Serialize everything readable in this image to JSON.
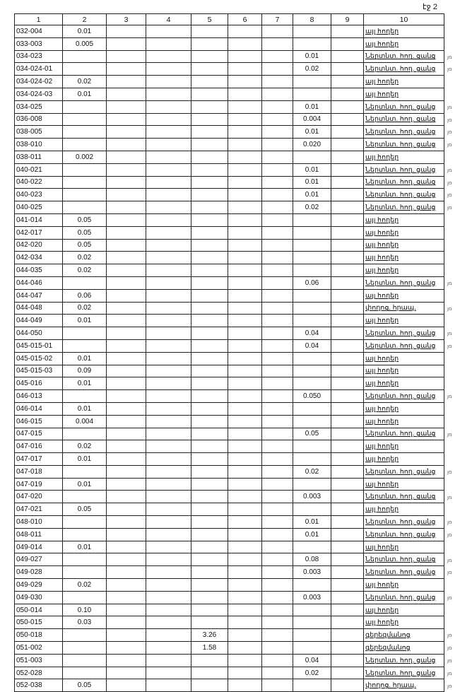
{
  "page_label": "էջ 2",
  "headers": [
    "1",
    "2",
    "3",
    "4",
    "5",
    "6",
    "7",
    "8",
    "9",
    "10"
  ],
  "margin_mark": "յռ",
  "rows": [
    {
      "c1": "032-004",
      "c2": "0.01",
      "c5": "",
      "c8": "",
      "c10": "այլ հողեր"
    },
    {
      "c1": "033-003",
      "c2": "0.005",
      "c5": "",
      "c8": "",
      "c10": "այլ հողեր"
    },
    {
      "c1": "034-023",
      "c2": "",
      "c5": "",
      "c8": "0.01",
      "c10": "Ներտնտ. հող. ցանց",
      "m": true
    },
    {
      "c1": "034-024-01",
      "c2": "",
      "c5": "",
      "c8": "0.02",
      "c10": "Ներտնտ. հող. ցանց",
      "m": true
    },
    {
      "c1": "034-024-02",
      "c2": "0.02",
      "c5": "",
      "c8": "",
      "c10": "այլ հողեր"
    },
    {
      "c1": "034-024-03",
      "c2": "0.01",
      "c5": "",
      "c8": "",
      "c10": "այլ հողեր"
    },
    {
      "c1": "034-025",
      "c2": "",
      "c5": "",
      "c8": "0.01",
      "c10": "Ներտնտ. հող. ցանց",
      "m": true
    },
    {
      "c1": "036-008",
      "c2": "",
      "c5": "",
      "c8": "0.004",
      "c10": "Ներտնտ. հող. ցանց",
      "m": true
    },
    {
      "c1": "038-005",
      "c2": "",
      "c5": "",
      "c8": "0.01",
      "c10": "Ներտնտ. հող. ցանց",
      "m": true
    },
    {
      "c1": "038-010",
      "c2": "",
      "c5": "",
      "c8": "0.020",
      "c10": "Ներտնտ. հող. ցանց",
      "m": true
    },
    {
      "c1": "038-011",
      "c2": "0.002",
      "c5": "",
      "c8": "",
      "c10": "այլ հողեր"
    },
    {
      "c1": "040-021",
      "c2": "",
      "c5": "",
      "c8": "0.01",
      "c10": "Ներտնտ. հող. ցանց",
      "m": true
    },
    {
      "c1": "040-022",
      "c2": "",
      "c5": "",
      "c8": "0.01",
      "c10": "Ներտնտ. հող. ցանց",
      "m": true
    },
    {
      "c1": "040-023",
      "c2": "",
      "c5": "",
      "c8": "0.01",
      "c10": "Ներտնտ. հող. ցանց",
      "m": true
    },
    {
      "c1": "040-025",
      "c2": "",
      "c5": "",
      "c8": "0.02",
      "c10": "Ներտնտ. հող. ցանց",
      "m": true
    },
    {
      "c1": "041-014",
      "c2": "0.05",
      "c5": "",
      "c8": "",
      "c10": "այլ հողեր"
    },
    {
      "c1": "042-017",
      "c2": "0.05",
      "c5": "",
      "c8": "",
      "c10": "այլ հողեր"
    },
    {
      "c1": "042-020",
      "c2": "0.05",
      "c5": "",
      "c8": "",
      "c10": "այլ հողեր"
    },
    {
      "c1": "042-034",
      "c2": "0.02",
      "c5": "",
      "c8": "",
      "c10": "այլ հողեր"
    },
    {
      "c1": "044-035",
      "c2": "0.02",
      "c5": "",
      "c8": "",
      "c10": "այլ հողեր"
    },
    {
      "c1": "044-046",
      "c2": "",
      "c5": "",
      "c8": "0.06",
      "c10": "Ներտնտ. հող. ցանց",
      "m": true
    },
    {
      "c1": "044-047",
      "c2": "0.06",
      "c5": "",
      "c8": "",
      "c10": "այլ հողեր"
    },
    {
      "c1": "044-048",
      "c2": "0.02",
      "c5": "",
      "c8": "",
      "c10": "փողոց. հրապ.",
      "m": true
    },
    {
      "c1": "044-049",
      "c2": "0.01",
      "c5": "",
      "c8": "",
      "c10": "այլ հողեր"
    },
    {
      "c1": "044-050",
      "c2": "",
      "c5": "",
      "c8": "0.04",
      "c10": "Ներտնտ. հող. ցանց",
      "m": true
    },
    {
      "c1": "045-015-01",
      "c2": "",
      "c5": "",
      "c8": "0.04",
      "c10": "Ներտնտ. հող. ցանց",
      "m": true
    },
    {
      "c1": "045-015-02",
      "c2": "0.01",
      "c5": "",
      "c8": "",
      "c10": "այլ հողեր"
    },
    {
      "c1": "045-015-03",
      "c2": "0.09",
      "c5": "",
      "c8": "",
      "c10": "այլ հողեր"
    },
    {
      "c1": "045-016",
      "c2": "0.01",
      "c5": "",
      "c8": "",
      "c10": "այլ հողեր"
    },
    {
      "c1": "046-013",
      "c2": "",
      "c5": "",
      "c8": "0.050",
      "c10": "Ներտնտ. հող. ցանց",
      "m": true
    },
    {
      "c1": "046-014",
      "c2": "0.01",
      "c5": "",
      "c8": "",
      "c10": "այլ հողեր"
    },
    {
      "c1": "046-015",
      "c2": "0.004",
      "c5": "",
      "c8": "",
      "c10": "այլ հողեր"
    },
    {
      "c1": "047-015",
      "c2": "",
      "c5": "",
      "c8": "0.05",
      "c10": "Ներտնտ. հող. ցանց",
      "m": true
    },
    {
      "c1": "047-016",
      "c2": "0.02",
      "c5": "",
      "c8": "",
      "c10": "այլ հողեր"
    },
    {
      "c1": "047-017",
      "c2": "0.01",
      "c5": "",
      "c8": "",
      "c10": "այլ հողեր"
    },
    {
      "c1": "047-018",
      "c2": "",
      "c5": "",
      "c8": "0.02",
      "c10": "Ներտնտ. հող. ցանց",
      "m": true
    },
    {
      "c1": "047-019",
      "c2": "0.01",
      "c5": "",
      "c8": "",
      "c10": "այլ հողեր"
    },
    {
      "c1": "047-020",
      "c2": "",
      "c5": "",
      "c8": "0.003",
      "c10": "Ներտնտ. հող. ցանց",
      "m": true
    },
    {
      "c1": "047-021",
      "c2": "0.05",
      "c5": "",
      "c8": "",
      "c10": "այլ հողեր"
    },
    {
      "c1": "048-010",
      "c2": "",
      "c5": "",
      "c8": "0.01",
      "c10": "Ներտնտ. հող. ցանց",
      "m": true
    },
    {
      "c1": "048-011",
      "c2": "",
      "c5": "",
      "c8": "0.01",
      "c10": "Ներտնտ. հող. ցանց",
      "m": true
    },
    {
      "c1": "049-014",
      "c2": "0.01",
      "c5": "",
      "c8": "",
      "c10": "այլ հողեր"
    },
    {
      "c1": "049-027",
      "c2": "",
      "c5": "",
      "c8": "0.08",
      "c10": "Ներտնտ. հող. ցանց",
      "m": true
    },
    {
      "c1": "049-028",
      "c2": "",
      "c5": "",
      "c8": "0.003",
      "c10": "Ներտնտ. հող. ցանց",
      "m": true
    },
    {
      "c1": "049-029",
      "c2": "0.02",
      "c5": "",
      "c8": "",
      "c10": "այլ հողեր"
    },
    {
      "c1": "049-030",
      "c2": "",
      "c5": "",
      "c8": "0.003",
      "c10": "Ներտնտ. հող. ցանց",
      "m": true
    },
    {
      "c1": "050-014",
      "c2": "0.10",
      "c5": "",
      "c8": "",
      "c10": "այլ հողեր"
    },
    {
      "c1": "050-015",
      "c2": "0.03",
      "c5": "",
      "c8": "",
      "c10": "այլ հողեր"
    },
    {
      "c1": "050-018",
      "c2": "",
      "c5": "3.26",
      "c8": "",
      "c10": "գերեզմանոց",
      "m": true
    },
    {
      "c1": "051-002",
      "c2": "",
      "c5": "1.58",
      "c8": "",
      "c10": "գերեզմանոց",
      "m": true
    },
    {
      "c1": "051-003",
      "c2": "",
      "c5": "",
      "c8": "0.04",
      "c10": "Ներտնտ. հող. ցանց",
      "m": true
    },
    {
      "c1": "052-028",
      "c2": "",
      "c5": "",
      "c8": "0.02",
      "c10": "Ներտնտ. հող. ցանց",
      "m": true
    },
    {
      "c1": "052-038",
      "c2": "0.05",
      "c5": "",
      "c8": "",
      "c10": "փողոց. հրապ.",
      "m": true
    }
  ]
}
